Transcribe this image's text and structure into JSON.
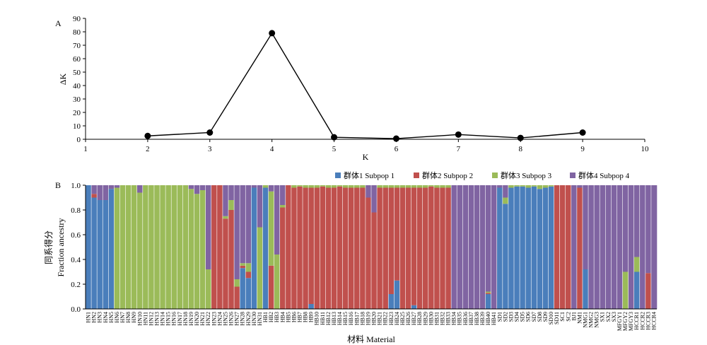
{
  "panels": {
    "a_label": "A",
    "b_label": "B"
  },
  "colors": {
    "subpop1": "#4a7ebb",
    "subpop2": "#c0504d",
    "subpop3": "#9bbb59",
    "subpop4": "#8064a2",
    "line": "#000000"
  },
  "chart_data": [
    {
      "type": "line",
      "panel": "A",
      "xlabel": "K",
      "ylabel": "ΔK",
      "xlim": [
        1,
        10
      ],
      "ylim": [
        0,
        90
      ],
      "xticks": [
        1,
        2,
        3,
        4,
        5,
        6,
        7,
        8,
        9,
        10
      ],
      "yticks": [
        0,
        10,
        20,
        30,
        40,
        50,
        60,
        70,
        80,
        90
      ],
      "x": [
        2,
        3,
        4,
        5,
        6,
        7,
        8,
        9
      ],
      "y": [
        2.5,
        5,
        79,
        1.5,
        0.5,
        3.5,
        1,
        5
      ]
    },
    {
      "type": "bar",
      "stacked": true,
      "panel": "B",
      "xlabel": "材料 Material",
      "ylabel_cn": "同系得分",
      "ylabel": "Fraction ancestry",
      "ylim": [
        0,
        1
      ],
      "yticks": [
        "0.0",
        "0.2",
        "0.4",
        "0.6",
        "0.8",
        "1.0"
      ],
      "legend_position": "top-right",
      "series": [
        {
          "name": "群体1 Subpop 1"
        },
        {
          "name": "群体2 Subpop 2"
        },
        {
          "name": "群体3 Subpop 3"
        },
        {
          "name": "群体4 Subpop 4"
        }
      ],
      "categories": [
        "HN1",
        "HN2",
        "HN3",
        "HN4",
        "HN5",
        "HN6",
        "HN7",
        "HN8",
        "HN9",
        "HN10",
        "HN11",
        "HN12",
        "HN13",
        "HN14",
        "HN15",
        "HN16",
        "HN17",
        "HN18",
        "HN19",
        "HN20",
        "HN21",
        "HN22",
        "HN23",
        "HN24",
        "HN25",
        "HN26",
        "HN27",
        "HN28",
        "HN29",
        "HN30",
        "HN31",
        "HB1",
        "HB2",
        "HB3",
        "HB4",
        "HB5",
        "HB6",
        "HB7",
        "HB8",
        "HB9",
        "HB10",
        "HB11",
        "HB12",
        "HB13",
        "HB14",
        "HB15",
        "HB16",
        "HB17",
        "HB18",
        "HB19",
        "HB20",
        "HB21",
        "HB22",
        "HB23",
        "HB24",
        "HB25",
        "HB26",
        "HB27",
        "HB28",
        "HB29",
        "HB30",
        "HB31",
        "HB32",
        "HB33",
        "HB34",
        "HB35",
        "HB36",
        "HB37",
        "HB38",
        "HB39",
        "HB40",
        "HB41",
        "SD1",
        "SD2",
        "SD3",
        "SD4",
        "SD5",
        "SD6",
        "SD7",
        "SD8",
        "SD9",
        "SD10",
        "SD11",
        "SC1",
        "SC2",
        "BJ1",
        "NM1",
        "NMG1",
        "NMG2",
        "NMG3",
        "SX1",
        "SX2",
        "SX3",
        "MFGY1",
        "MFGY2",
        "MFGY3",
        "HCCR1",
        "HCCR2",
        "HCCR3",
        "HCCR4"
      ],
      "values": [
        [
          1,
          0,
          0,
          0
        ],
        [
          0.9,
          0.03,
          0,
          0.07
        ],
        [
          0.88,
          0,
          0,
          0.12
        ],
        [
          0.88,
          0,
          0,
          0.12
        ],
        [
          0.97,
          0,
          0,
          0.03
        ],
        [
          0,
          0,
          0.98,
          0.02
        ],
        [
          0,
          0,
          1,
          0
        ],
        [
          0,
          0,
          1,
          0
        ],
        [
          0,
          0,
          1,
          0
        ],
        [
          0,
          0,
          0.94,
          0.06
        ],
        [
          0,
          0,
          1,
          0
        ],
        [
          0,
          0,
          1,
          0
        ],
        [
          0,
          0,
          1,
          0
        ],
        [
          0,
          0,
          1,
          0
        ],
        [
          0,
          0,
          1,
          0
        ],
        [
          0,
          0,
          1,
          0
        ],
        [
          0,
          0,
          1,
          0
        ],
        [
          0,
          0,
          1,
          0
        ],
        [
          0,
          0,
          0.97,
          0.03
        ],
        [
          0,
          0,
          0.93,
          0.07
        ],
        [
          0,
          0,
          0.96,
          0.04
        ],
        [
          0,
          0,
          0.32,
          0.68
        ],
        [
          0,
          1,
          0,
          0
        ],
        [
          0,
          1,
          0,
          0
        ],
        [
          0,
          0.73,
          0.02,
          0.25
        ],
        [
          0,
          0.8,
          0.08,
          0.12
        ],
        [
          0,
          0.18,
          0.06,
          0.76
        ],
        [
          0.33,
          0.02,
          0.02,
          0.63
        ],
        [
          0.25,
          0.05,
          0.07,
          0.63
        ],
        [
          0.98,
          0,
          0,
          0.02
        ],
        [
          0,
          0,
          0.66,
          0.34
        ],
        [
          0.98,
          0,
          0.02,
          0
        ],
        [
          0,
          0.35,
          0.6,
          0.05
        ],
        [
          0,
          0,
          0.44,
          0.56
        ],
        [
          0,
          0.82,
          0.02,
          0.16
        ],
        [
          0,
          1,
          0,
          0
        ],
        [
          0,
          0.98,
          0.02,
          0
        ],
        [
          0,
          0.99,
          0.01,
          0
        ],
        [
          0,
          0.98,
          0.02,
          0
        ],
        [
          0.04,
          0.94,
          0.02,
          0
        ],
        [
          0,
          0.98,
          0.02,
          0
        ],
        [
          0,
          0.99,
          0.01,
          0
        ],
        [
          0,
          0.98,
          0.02,
          0
        ],
        [
          0,
          0.98,
          0.02,
          0
        ],
        [
          0,
          0.99,
          0.01,
          0
        ],
        [
          0,
          0.98,
          0.02,
          0
        ],
        [
          0,
          0.98,
          0.02,
          0
        ],
        [
          0,
          0.98,
          0.02,
          0
        ],
        [
          0,
          0.98,
          0.02,
          0
        ],
        [
          0,
          0.9,
          0,
          0.1
        ],
        [
          0,
          0.78,
          0,
          0.22
        ],
        [
          0,
          0.98,
          0.02,
          0
        ],
        [
          0,
          0.98,
          0.02,
          0
        ],
        [
          0.12,
          0.86,
          0.02,
          0
        ],
        [
          0.23,
          0.75,
          0.02,
          0
        ],
        [
          0,
          0.98,
          0.02,
          0
        ],
        [
          0,
          0.98,
          0.02,
          0
        ],
        [
          0.03,
          0.95,
          0.02,
          0
        ],
        [
          0,
          0.98,
          0.02,
          0
        ],
        [
          0,
          0.98,
          0.02,
          0
        ],
        [
          0,
          0.99,
          0.01,
          0
        ],
        [
          0,
          0.98,
          0.02,
          0
        ],
        [
          0,
          0.98,
          0.02,
          0
        ],
        [
          0,
          0.98,
          0.02,
          0
        ],
        [
          0,
          0,
          0,
          1
        ],
        [
          0,
          0,
          0,
          1
        ],
        [
          0,
          0,
          0,
          1
        ],
        [
          0,
          0,
          0,
          1
        ],
        [
          0,
          0,
          0,
          1
        ],
        [
          0,
          0,
          0,
          1
        ],
        [
          0.12,
          0.01,
          0.01,
          0.86
        ],
        [
          0,
          0,
          0,
          1
        ],
        [
          0.98,
          0,
          0,
          0.02
        ],
        [
          0.85,
          0,
          0.05,
          0.1
        ],
        [
          0.98,
          0,
          0.02,
          0
        ],
        [
          0.99,
          0,
          0.01,
          0
        ],
        [
          0.99,
          0,
          0.01,
          0
        ],
        [
          0.98,
          0,
          0.02,
          0
        ],
        [
          0.99,
          0,
          0.01,
          0
        ],
        [
          0.97,
          0,
          0.03,
          0
        ],
        [
          0.98,
          0,
          0.02,
          0
        ],
        [
          0.99,
          0,
          0.01,
          0
        ],
        [
          0,
          1,
          0,
          0
        ],
        [
          0,
          1,
          0,
          0
        ],
        [
          0,
          1,
          0,
          0
        ],
        [
          0,
          0,
          0,
          1
        ],
        [
          0,
          0.98,
          0,
          0.02
        ],
        [
          0.32,
          0,
          0,
          0.68
        ],
        [
          0,
          0,
          0,
          1
        ],
        [
          0,
          0,
          0,
          1
        ],
        [
          0,
          0,
          0,
          1
        ],
        [
          0,
          0,
          0,
          1
        ],
        [
          0,
          0,
          0,
          1
        ],
        [
          0,
          0,
          0,
          1
        ],
        [
          0,
          0,
          0.3,
          0.7
        ],
        [
          0,
          0,
          0,
          1
        ],
        [
          0.3,
          0,
          0.12,
          0.58
        ],
        [
          0,
          0,
          0,
          1
        ],
        [
          0,
          0.29,
          0,
          0.71
        ],
        [
          0,
          0,
          0,
          1
        ]
      ]
    }
  ]
}
